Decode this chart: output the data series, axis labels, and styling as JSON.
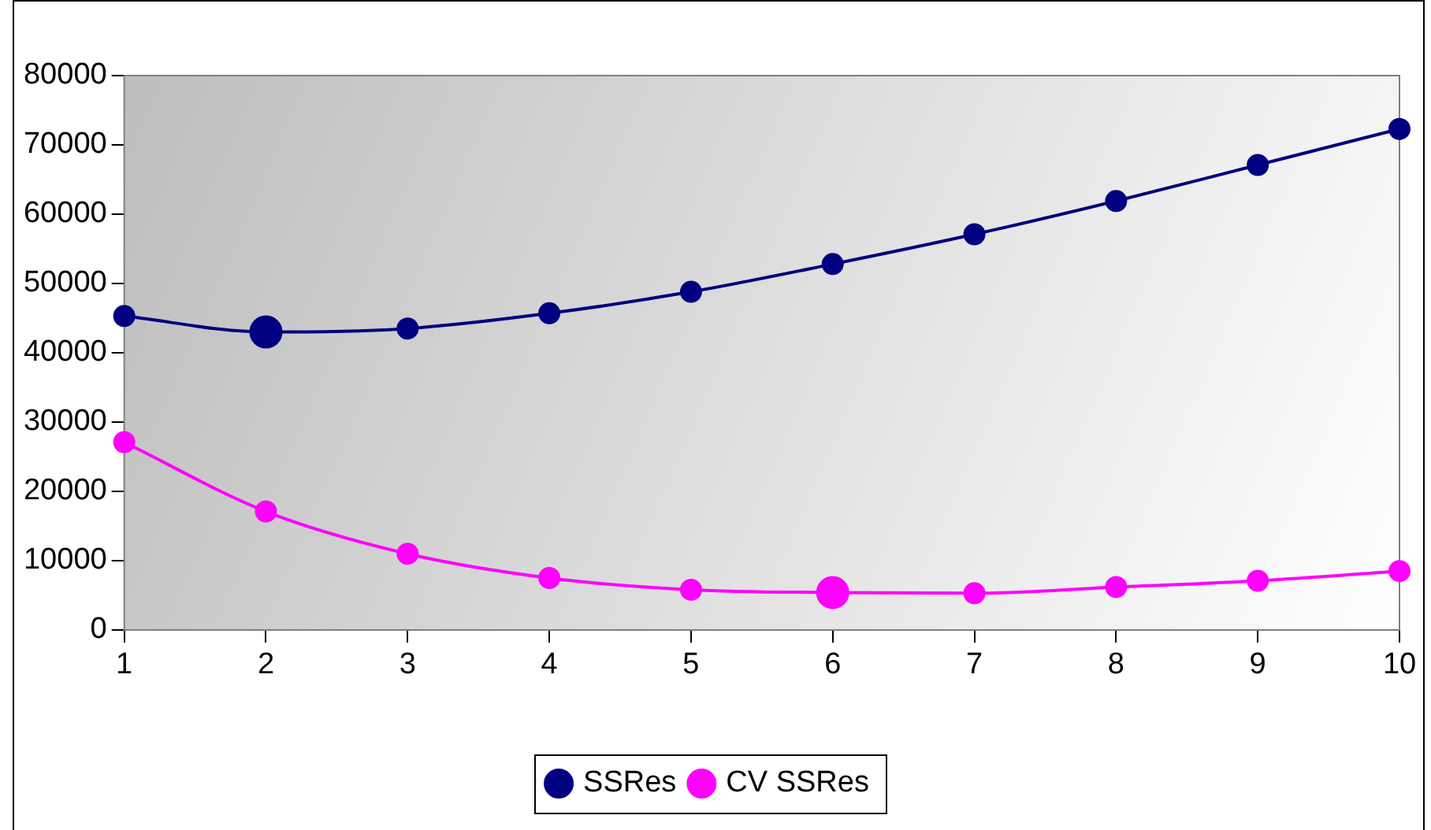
{
  "chart_data": {
    "type": "line",
    "categories": [
      "1",
      "2",
      "3",
      "4",
      "5",
      "6",
      "7",
      "8",
      "9",
      "10"
    ],
    "ylim": [
      0,
      80000
    ],
    "yticks": [
      0,
      10000,
      20000,
      30000,
      40000,
      50000,
      60000,
      70000,
      80000
    ],
    "series": [
      {
        "name": "SSRes",
        "color": "#000080",
        "values": [
          45300,
          43000,
          43500,
          45700,
          48800,
          52800,
          57100,
          61900,
          67100,
          72300
        ]
      },
      {
        "name": "CV SSRes",
        "color": "#ff00ff",
        "values": [
          27100,
          17100,
          11000,
          7500,
          5800,
          5400,
          5300,
          6200,
          7100,
          8500
        ]
      },
      {
        "type": "scatter",
        "color": "#000080",
        "x": [
          "2"
        ],
        "values": [
          43000
        ]
      },
      {
        "type": "scatter",
        "color": "#ff00ff",
        "x": [
          "6"
        ],
        "values": [
          5400
        ]
      }
    ],
    "marker": "circle",
    "line_style": "solid",
    "legend": "bottom"
  }
}
